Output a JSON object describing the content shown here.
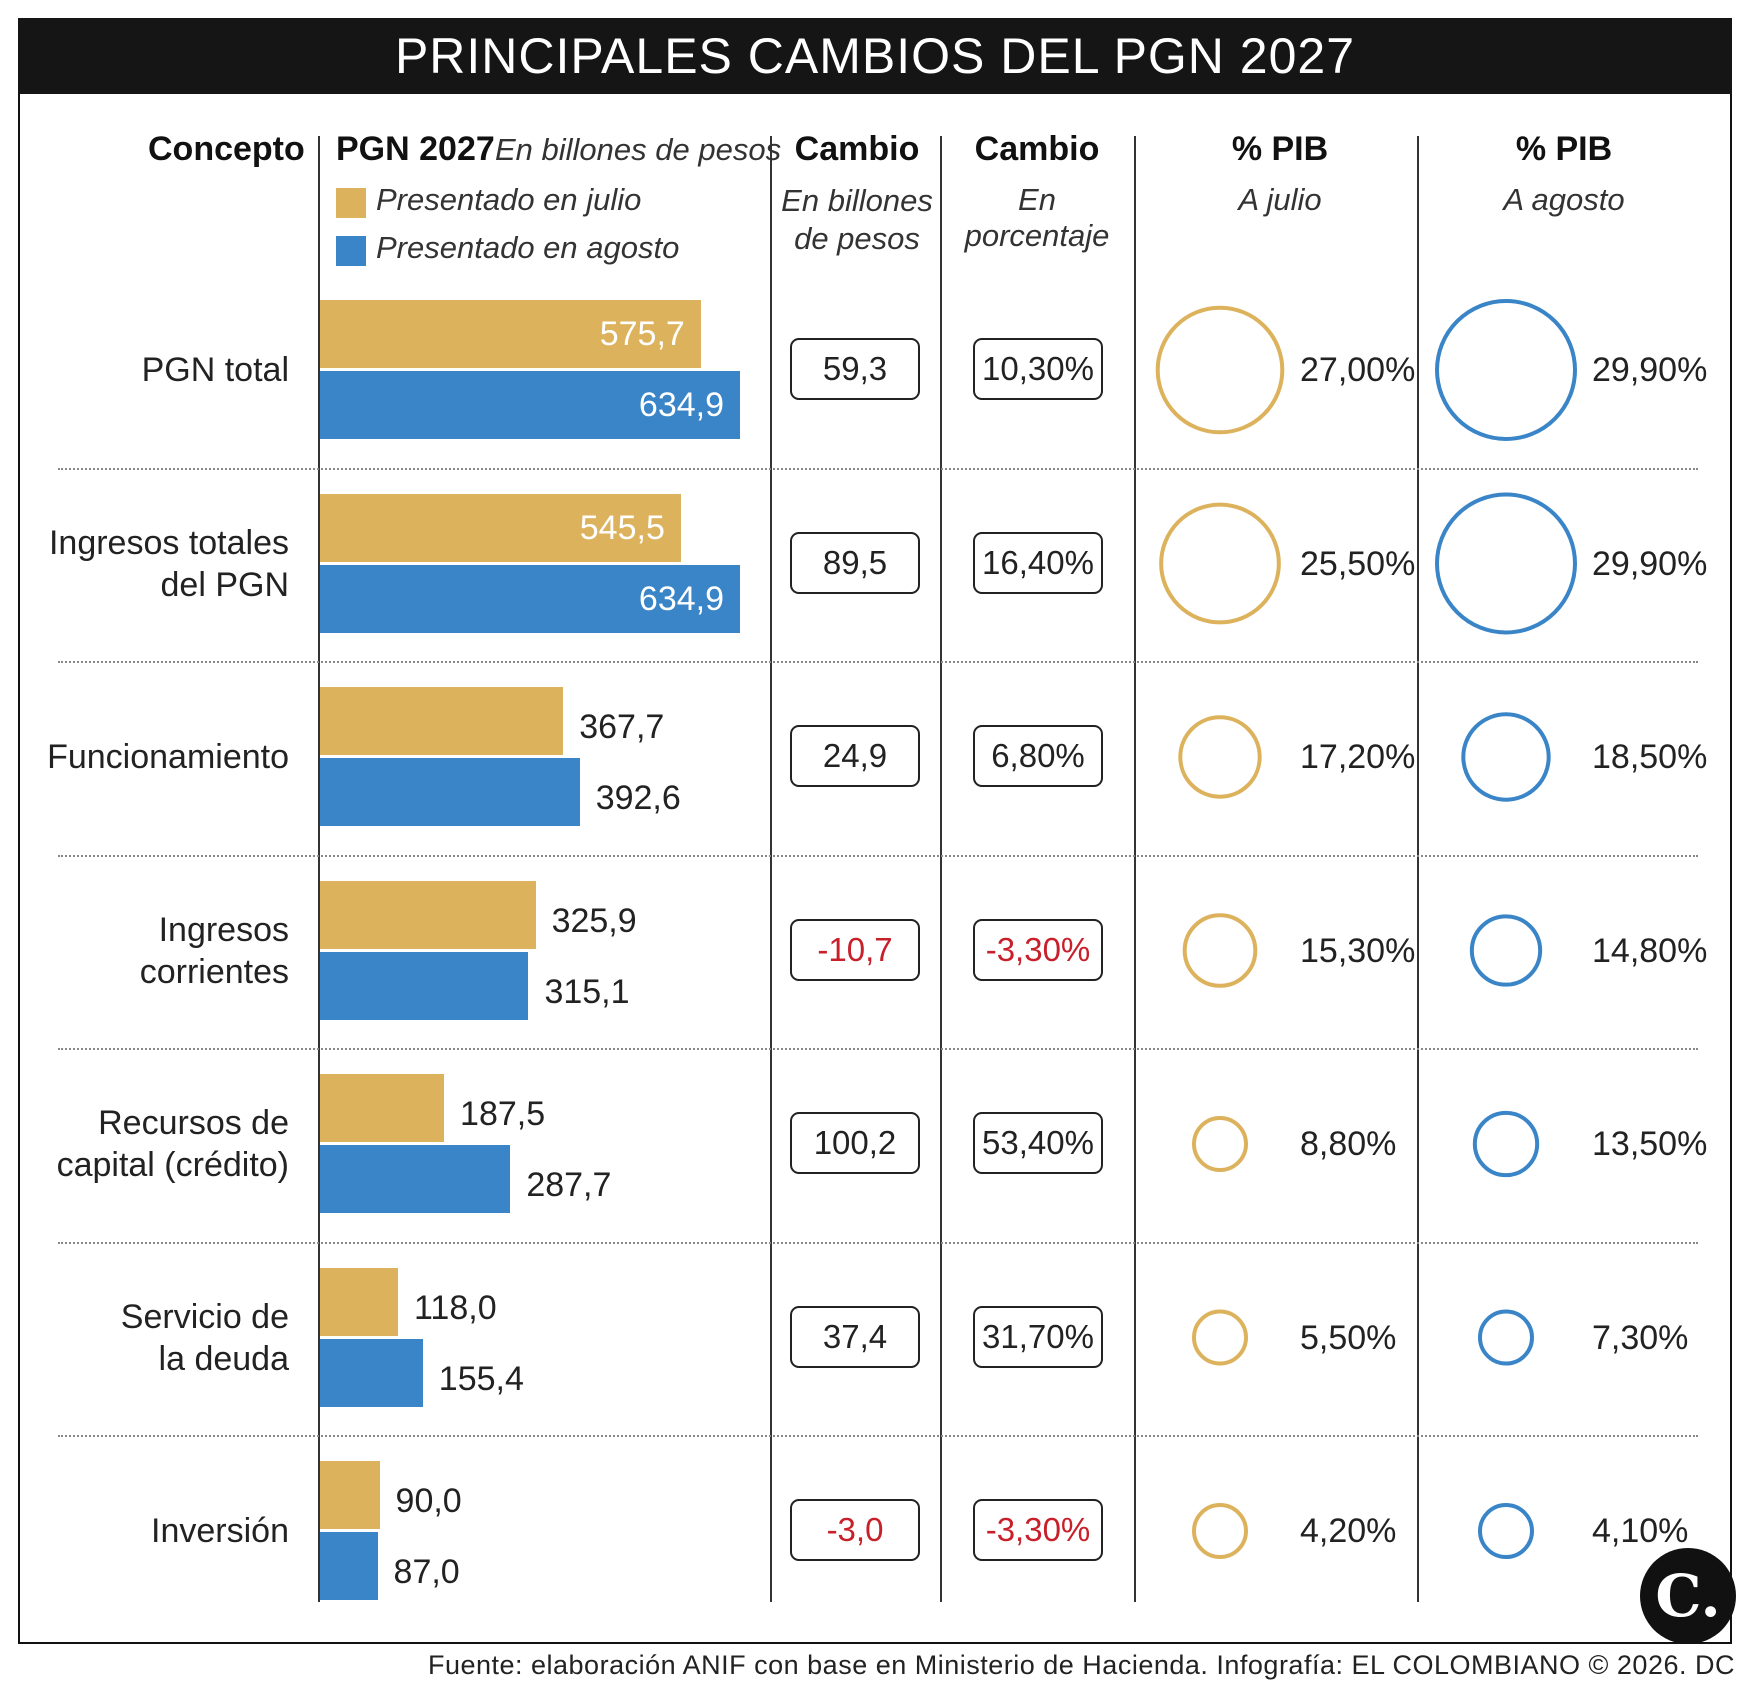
{
  "title": "PRINCIPALES CAMBIOS DEL PGN 2027",
  "headers": {
    "concepto": "Concepto",
    "pgn": "PGN 2027",
    "pgn_sub": "En billones de pesos",
    "cambio_bill": "Cambio",
    "cambio_bill_sub": "En billones\nde pesos",
    "cambio_pct": "Cambio",
    "cambio_pct_sub": "En porcentaje",
    "pib_julio": "% PIB",
    "pib_julio_sub": "A julio",
    "pib_agosto": "% PIB",
    "pib_agosto_sub": "A agosto"
  },
  "legend": {
    "julio": "Presentado en julio",
    "agosto": "Presentado en agosto"
  },
  "colors": {
    "julio": "#ddb25c",
    "agosto": "#3a85c7",
    "negative": "#c8202a"
  },
  "chart_data": {
    "type": "bar",
    "orientation": "horizontal",
    "categories": [
      "PGN total",
      "Ingresos totales del PGN",
      "Funcionamiento",
      "Ingresos corrientes",
      "Recursos de capital (crédito)",
      "Servicio de la deuda",
      "Inversión"
    ],
    "category_lines": [
      [
        "PGN total"
      ],
      [
        "Ingresos totales",
        "del PGN"
      ],
      [
        "Funcionamiento"
      ],
      [
        "Ingresos",
        "corrientes"
      ],
      [
        "Recursos de",
        "capital (crédito)"
      ],
      [
        "Servicio de",
        "la deuda"
      ],
      [
        "Inversión"
      ]
    ],
    "series": [
      {
        "name": "Presentado en julio",
        "values": [
          575.7,
          545.5,
          367.7,
          325.9,
          187.5,
          118.0,
          90.0
        ],
        "labels": [
          "575,7",
          "545,5",
          "367,7",
          "325,9",
          "187,5",
          "118,0",
          "90,0"
        ]
      },
      {
        "name": "Presentado en agosto",
        "values": [
          634.9,
          634.9,
          392.6,
          315.1,
          287.7,
          155.4,
          87.0
        ],
        "labels": [
          "634,9",
          "634,9",
          "392,6",
          "315,1",
          "287,7",
          "155,4",
          "87,0"
        ]
      }
    ],
    "change_billions": [
      "59,3",
      "89,5",
      "24,9",
      "-10,7",
      "100,2",
      "37,4",
      "-3,0"
    ],
    "change_billions_values": [
      59.3,
      89.5,
      24.9,
      -10.7,
      100.2,
      37.4,
      -3.0
    ],
    "change_percent": [
      "10,30%",
      "16,40%",
      "6,80%",
      "-3,30%",
      "53,40%",
      "31,70%",
      "-3,30%"
    ],
    "change_percent_values": [
      10.3,
      16.4,
      6.8,
      -3.3,
      53.4,
      31.7,
      -3.3
    ],
    "pib_julio": [
      "27,00%",
      "25,50%",
      "17,20%",
      "15,30%",
      "8,80%",
      "5,50%",
      "4,20%"
    ],
    "pib_julio_values": [
      27.0,
      25.5,
      17.2,
      15.3,
      8.8,
      5.5,
      4.2
    ],
    "pib_agosto": [
      "29,90%",
      "29,90%",
      "18,50%",
      "14,80%",
      "13,50%",
      "7,30%",
      "4,10%"
    ],
    "pib_agosto_values": [
      29.9,
      29.9,
      18.5,
      14.8,
      13.5,
      7.3,
      4.1
    ]
  },
  "source": "Fuente: elaboración ANIF con base en Ministerio de Hacienda. Infografía: EL COLOMBIANO © 2026. DC",
  "logo_text": "C."
}
